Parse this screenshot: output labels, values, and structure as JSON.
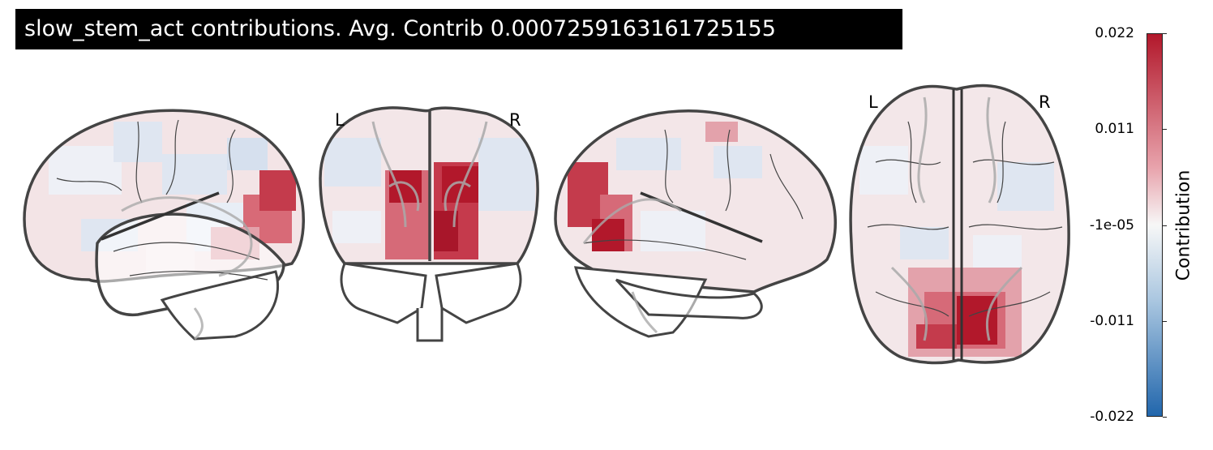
{
  "title": "slow_stem_act contributions. Avg. Contrib 0.0007259163161725155",
  "views": {
    "coronal": {
      "left_label": "L",
      "right_label": "R"
    },
    "axial": {
      "left_label": "L",
      "right_label": "R"
    }
  },
  "colorbar": {
    "label": "Contribution",
    "ticks": [
      "0.022",
      "0.011",
      "-1e-05",
      "-0.011",
      "-0.022"
    ],
    "colors": {
      "max": "#b2182b",
      "mid": "#f7f7f7",
      "min": "#2166ac"
    }
  }
}
